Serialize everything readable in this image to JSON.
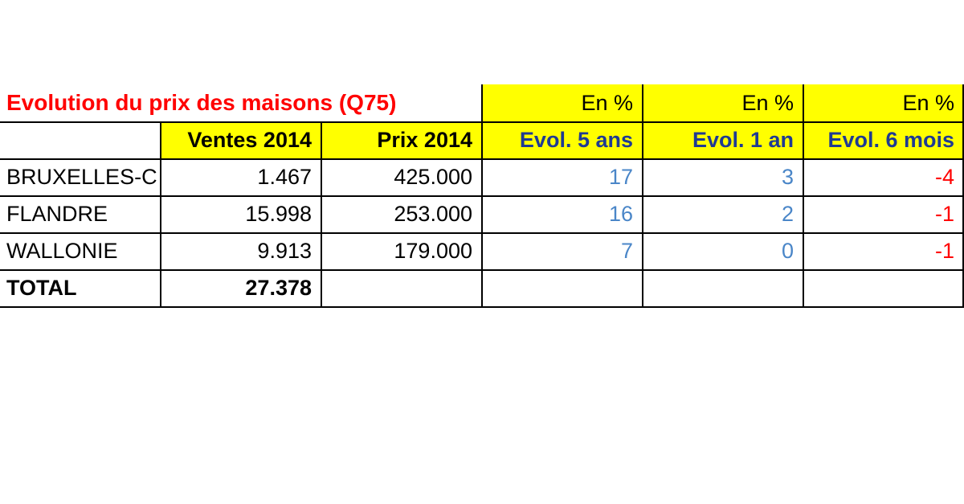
{
  "chart_data": {
    "type": "table",
    "title": "Evolution du prix des maisons (Q75)",
    "unit_headers": [
      "En %",
      "En %",
      "En %"
    ],
    "columns": [
      "",
      "Ventes 2014",
      "Prix 2014",
      "Evol. 5 ans",
      "Evol. 1 an",
      "Evol. 6 mois"
    ],
    "rows": [
      {
        "region": "BRUXELLES-C",
        "ventes": "1.467",
        "prix": "425.000",
        "evol5": "17",
        "evol1": "3",
        "evol6": "-4"
      },
      {
        "region": "FLANDRE",
        "ventes": "15.998",
        "prix": "253.000",
        "evol5": "16",
        "evol1": "2",
        "evol6": "-1"
      },
      {
        "region": "WALLONIE",
        "ventes": "9.913",
        "prix": "179.000",
        "evol5": "7",
        "evol1": "0",
        "evol6": "-1"
      }
    ],
    "total": {
      "label": "TOTAL",
      "ventes": "27.378"
    },
    "colors": {
      "highlight": "#ffff00",
      "title": "#ff0000",
      "header_text": "#1f3a93",
      "positive": "#4a86c8",
      "negative": "#ff0000"
    }
  }
}
